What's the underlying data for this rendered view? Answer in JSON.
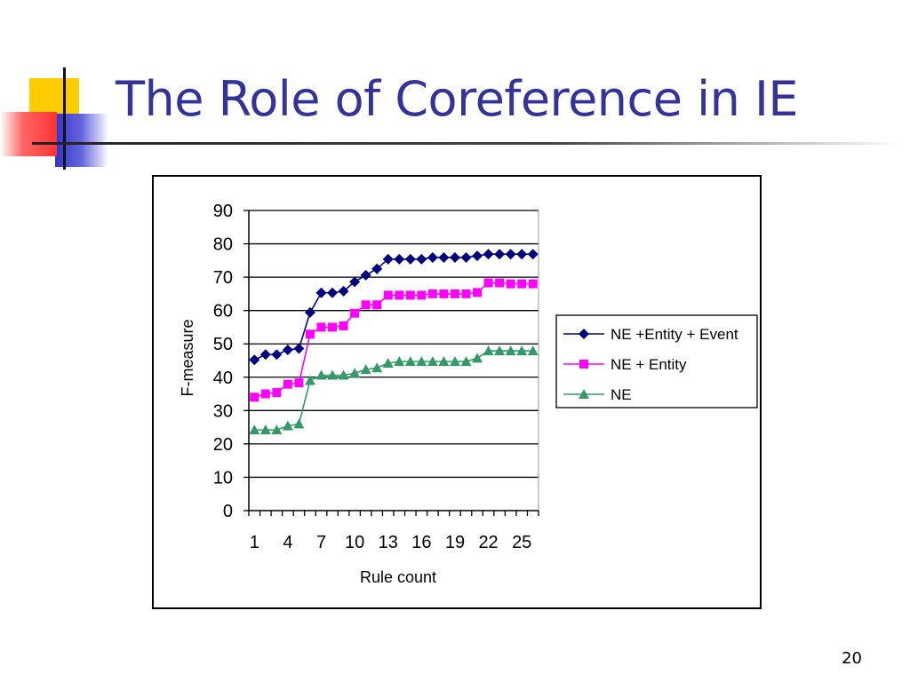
{
  "slide": {
    "title": "The Role of Coreference in IE",
    "page_number": "20"
  },
  "colors": {
    "title": "#333399",
    "decor_yellow": "#ffcc00",
    "decor_red": "#ff3333",
    "decor_blue": "#3333cc"
  },
  "chart_data": {
    "type": "line",
    "xlabel": "Rule count",
    "ylabel": "F-measure",
    "ylim": [
      0,
      90
    ],
    "yticks": [
      0,
      10,
      20,
      30,
      40,
      50,
      60,
      70,
      80,
      90
    ],
    "x": [
      1,
      2,
      3,
      4,
      5,
      6,
      7,
      8,
      9,
      10,
      11,
      12,
      13,
      14,
      15,
      16,
      17,
      18,
      19,
      20,
      21,
      22,
      23,
      24,
      25,
      26
    ],
    "xtick_labels": [
      "1",
      "4",
      "7",
      "10",
      "13",
      "16",
      "19",
      "22",
      "25"
    ],
    "xtick_values": [
      1,
      4,
      7,
      10,
      13,
      16,
      19,
      22,
      25
    ],
    "grid": "horizontal",
    "legend_position": "right",
    "series": [
      {
        "name": "NE +Entity + Event",
        "color": "#000080",
        "marker": "diamond",
        "values": [
          45.2,
          46.8,
          46.8,
          48.2,
          48.6,
          59.4,
          65.3,
          65.3,
          65.8,
          68.6,
          70.6,
          72.5,
          75.4,
          75.4,
          75.4,
          75.4,
          75.9,
          75.9,
          75.9,
          75.9,
          76.4,
          76.9,
          76.9,
          76.9,
          76.9,
          76.9
        ]
      },
      {
        "name": "NE + Entity",
        "color": "#ff00ff",
        "marker": "square",
        "values": [
          34.0,
          35.0,
          35.4,
          37.9,
          38.3,
          52.9,
          55.0,
          55.0,
          55.4,
          59.2,
          61.7,
          61.7,
          64.6,
          64.6,
          64.6,
          64.6,
          65.0,
          65.0,
          65.0,
          65.0,
          65.4,
          68.3,
          68.3,
          68.0,
          68.0,
          68.0
        ]
      },
      {
        "name": "NE",
        "color": "#339966",
        "marker": "triangle",
        "values": [
          24.2,
          24.2,
          24.2,
          25.4,
          26.0,
          39.0,
          40.6,
          40.6,
          40.6,
          41.2,
          42.3,
          42.8,
          44.2,
          44.7,
          44.7,
          44.7,
          44.7,
          44.7,
          44.7,
          44.7,
          45.7,
          47.9,
          47.9,
          47.9,
          47.9,
          47.9
        ]
      }
    ]
  }
}
